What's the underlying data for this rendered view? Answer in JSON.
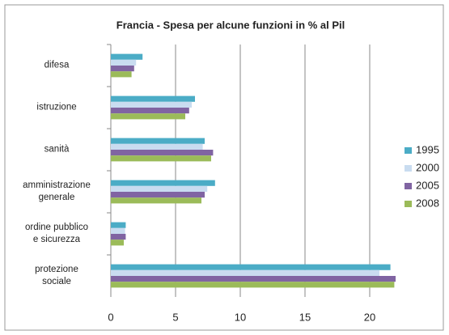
{
  "chart_data": {
    "type": "hbar",
    "title": "Francia - Spesa per alcune funzioni in % al Pil",
    "categories": [
      "difesa",
      "istruzione",
      "sanità",
      "amministrazione\ngenerale",
      "ordine pubblico\ne sicurezza",
      "protezione\nsociale"
    ],
    "series": [
      {
        "name": "1995",
        "color": "#4bacc6",
        "values": [
          2.45,
          6.5,
          7.25,
          8.05,
          1.15,
          21.6
        ]
      },
      {
        "name": "2000",
        "color": "#c9dcf0",
        "values": [
          1.95,
          6.25,
          7.1,
          7.45,
          1.1,
          20.75
        ]
      },
      {
        "name": "2005",
        "color": "#8064a2",
        "values": [
          1.8,
          6.05,
          7.9,
          7.25,
          1.15,
          22.0
        ]
      },
      {
        "name": "2008",
        "color": "#9bbb59",
        "values": [
          1.6,
          5.75,
          7.75,
          7.0,
          1.0,
          21.9
        ]
      }
    ],
    "xlim": [
      0,
      22
    ],
    "xticks": [
      0,
      5,
      10,
      15,
      20
    ],
    "grid": true,
    "legend": "right"
  }
}
